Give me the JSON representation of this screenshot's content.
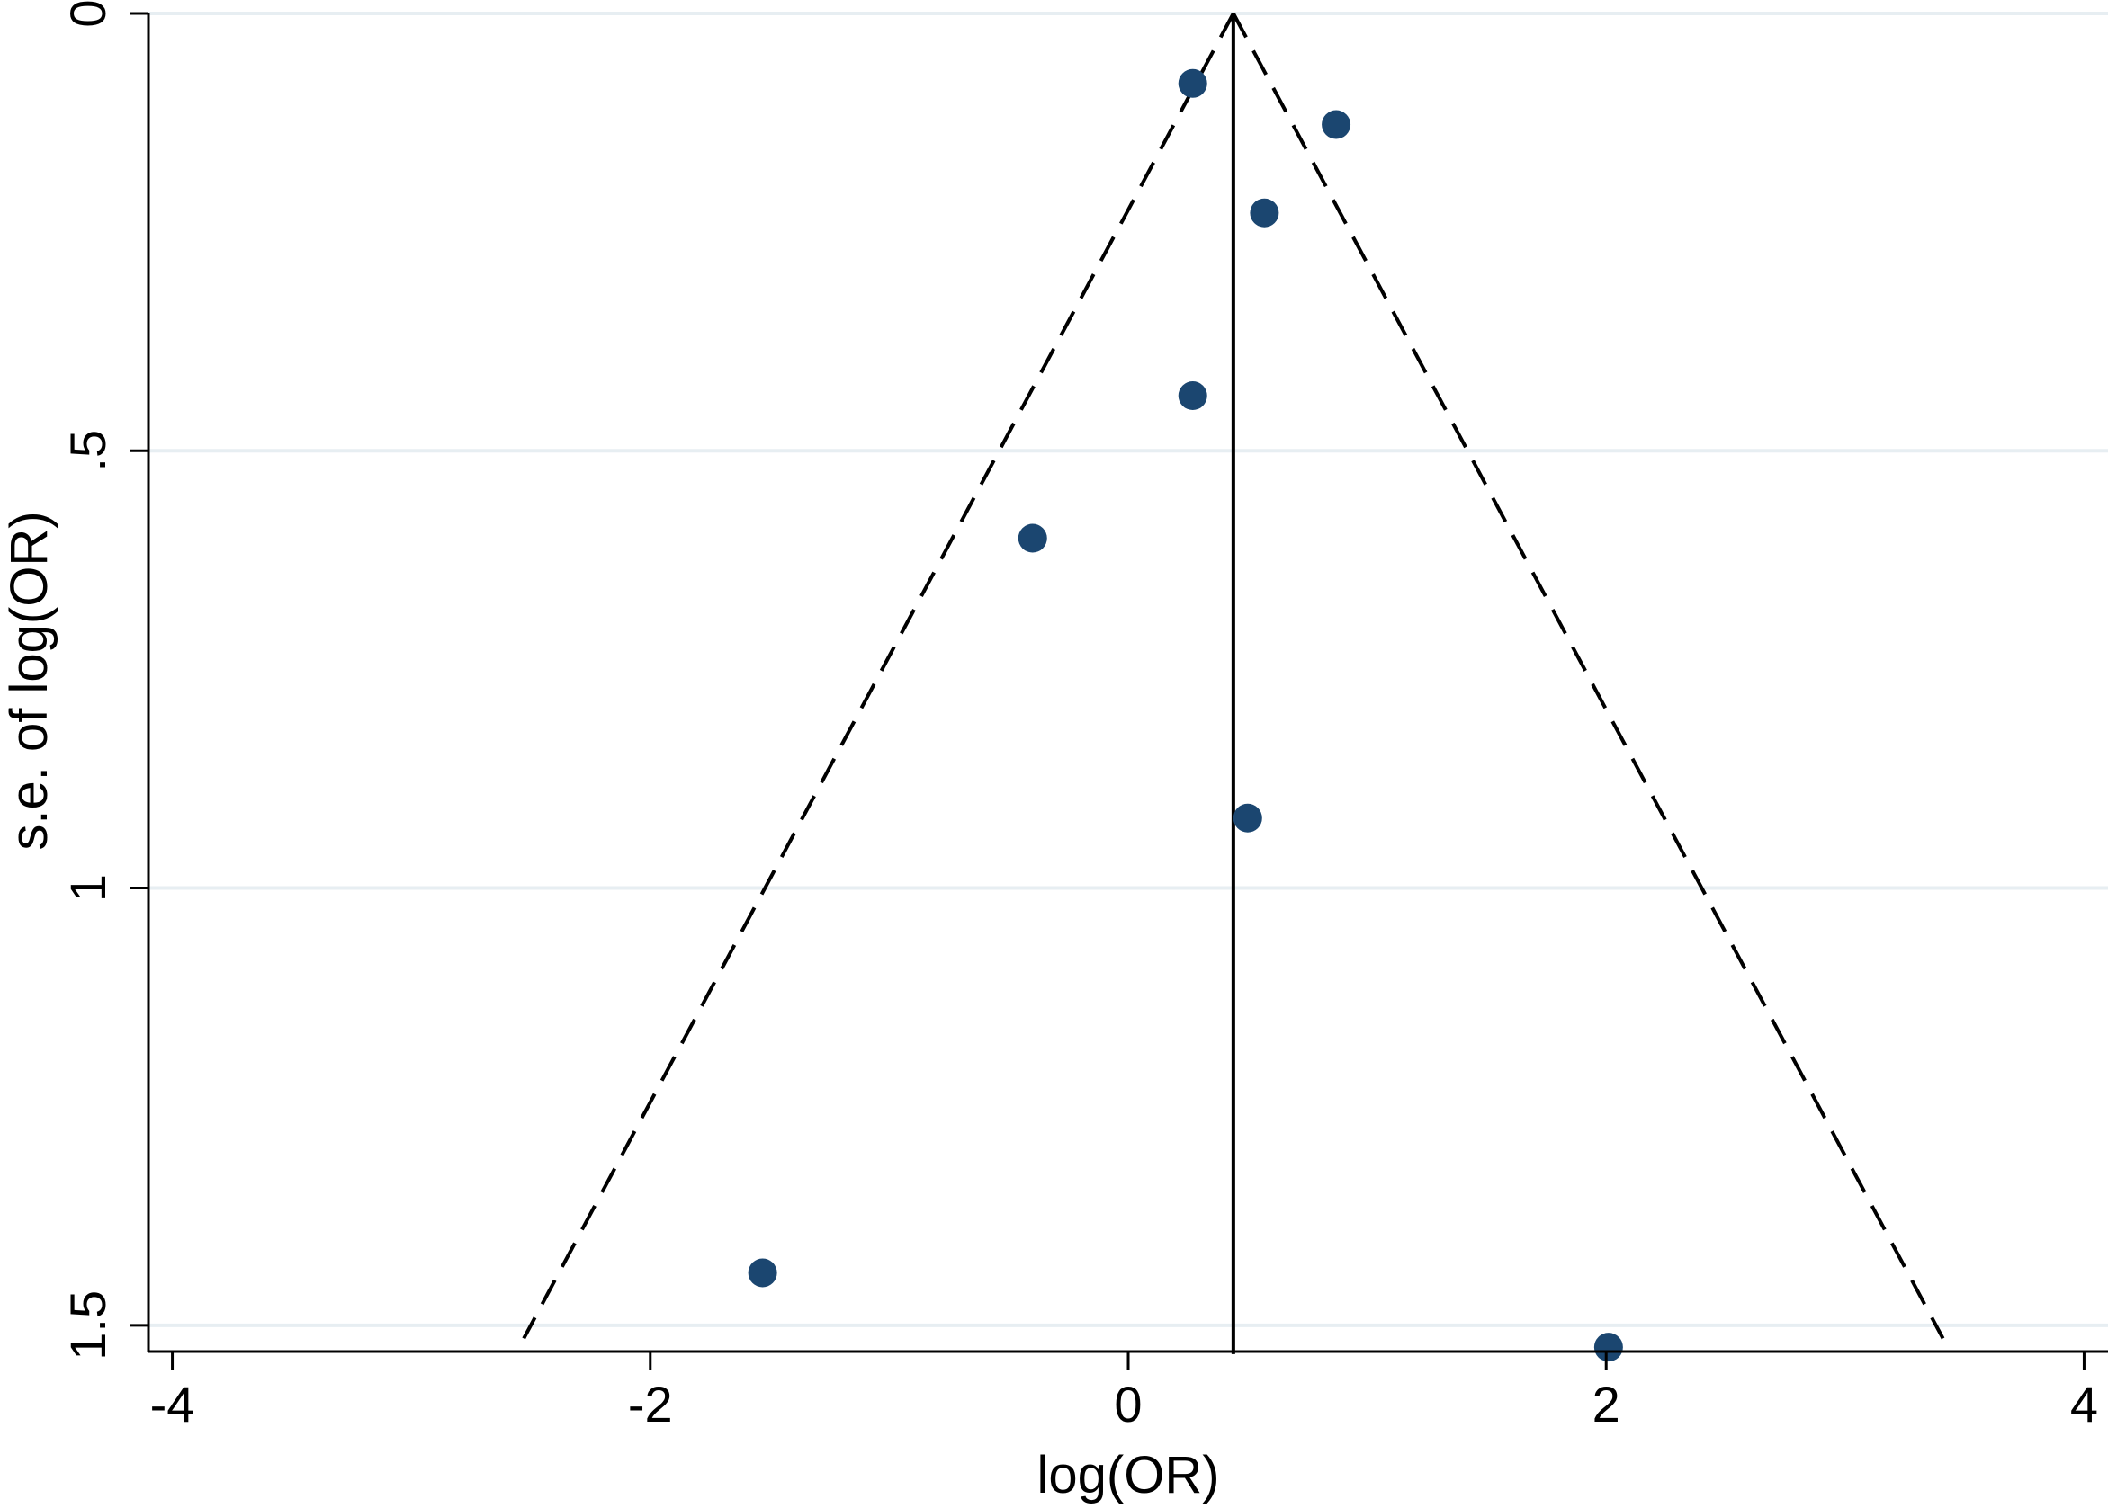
{
  "chart_data": {
    "type": "scatter",
    "subtype": "funnel-plot",
    "title": "",
    "xlabel": "log(OR)",
    "ylabel": "s.e. of log(OR)",
    "xlim": [
      -4.1,
      4.1
    ],
    "ylim": [
      0,
      1.53
    ],
    "y_reversed": true,
    "x_ticks": [
      {
        "value": -4,
        "label": "-4"
      },
      {
        "value": -2,
        "label": "-2"
      },
      {
        "value": 0,
        "label": "0"
      },
      {
        "value": 2,
        "label": "2"
      },
      {
        "value": 4,
        "label": "4"
      }
    ],
    "y_ticks": [
      {
        "value": 0,
        "label": "0"
      },
      {
        "value": 0.5,
        "label": ".5"
      },
      {
        "value": 1,
        "label": "1"
      },
      {
        "value": 1.5,
        "label": "1.5"
      }
    ],
    "grid": {
      "horizontal": true,
      "vertical": false
    },
    "pooled_estimate": 0.44,
    "funnel_limits": {
      "se_max": 1.515,
      "z": 1.96
    },
    "points": [
      {
        "x": 0.27,
        "y": 0.08
      },
      {
        "x": 0.87,
        "y": 0.127
      },
      {
        "x": 0.57,
        "y": 0.228
      },
      {
        "x": 0.27,
        "y": 0.437
      },
      {
        "x": -0.4,
        "y": 0.6
      },
      {
        "x": 0.5,
        "y": 0.92
      },
      {
        "x": -1.53,
        "y": 1.44
      },
      {
        "x": 2.01,
        "y": 1.525
      }
    ],
    "colors": {
      "marker": "#1b4670",
      "grid": "#e7eef2",
      "axis": "#000000",
      "lines": "#000000"
    }
  }
}
